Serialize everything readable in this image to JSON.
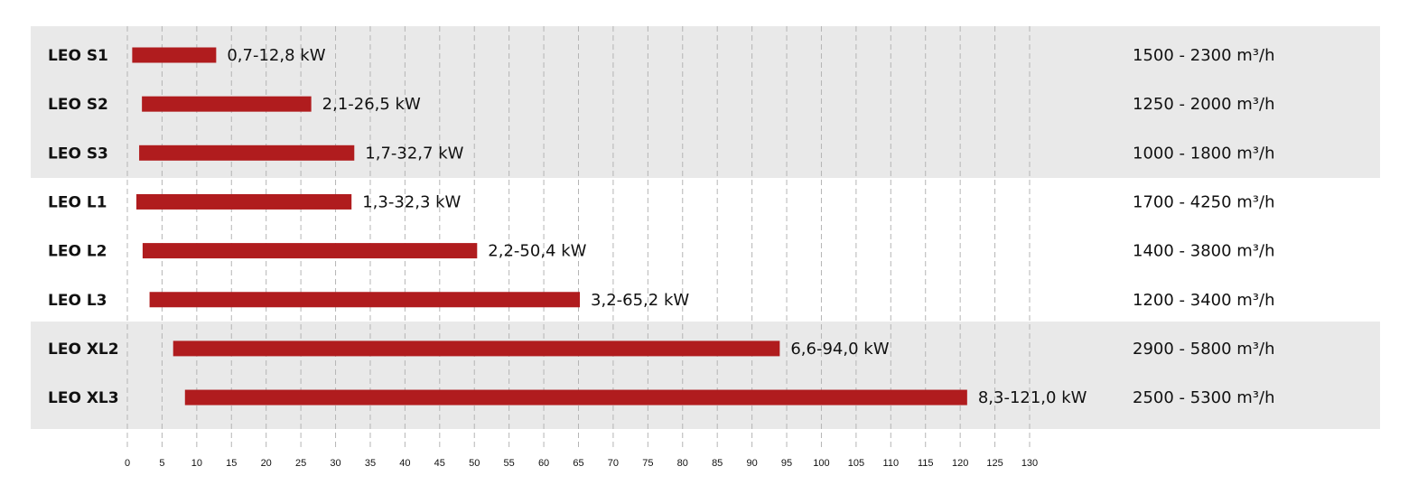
{
  "chart_data": {
    "type": "range-bar",
    "categories": [
      "LEO S1",
      "LEO S2",
      "LEO S3",
      "LEO L1",
      "LEO L2",
      "LEO L3",
      "LEO XL2",
      "LEO XL3"
    ],
    "low": [
      0.7,
      2.1,
      1.7,
      1.3,
      2.2,
      3.2,
      6.6,
      8.3
    ],
    "high": [
      12.8,
      26.5,
      32.7,
      32.3,
      50.4,
      65.2,
      94.0,
      121.0
    ],
    "value_labels": [
      "0,7-12,8 kW",
      "2,1-26,5 kW",
      "1,7-32,7 kW",
      "1,3-32,3 kW",
      "2,2-50,4 kW",
      "3,2-65,2 kW",
      "6,6-94,0 kW",
      "8,3-121,0 kW"
    ],
    "airflow": [
      "1500 - 2300 m³/h",
      "1250 - 2000 m³/h",
      "1000 - 1800 m³/h",
      "1700 - 4250 m³/h",
      "1400 - 3800 m³/h",
      "1200 - 3400 m³/h",
      "2900 - 5800 m³/h",
      "2500 - 5300 m³/h"
    ],
    "color": "#b01c1e",
    "xlim": [
      0,
      130
    ],
    "xticks": [
      0,
      5,
      10,
      15,
      20,
      25,
      30,
      35,
      40,
      45,
      50,
      55,
      60,
      65,
      70,
      75,
      80,
      85,
      90,
      95,
      100,
      105,
      110,
      115,
      120,
      125,
      130
    ],
    "grid": true
  }
}
